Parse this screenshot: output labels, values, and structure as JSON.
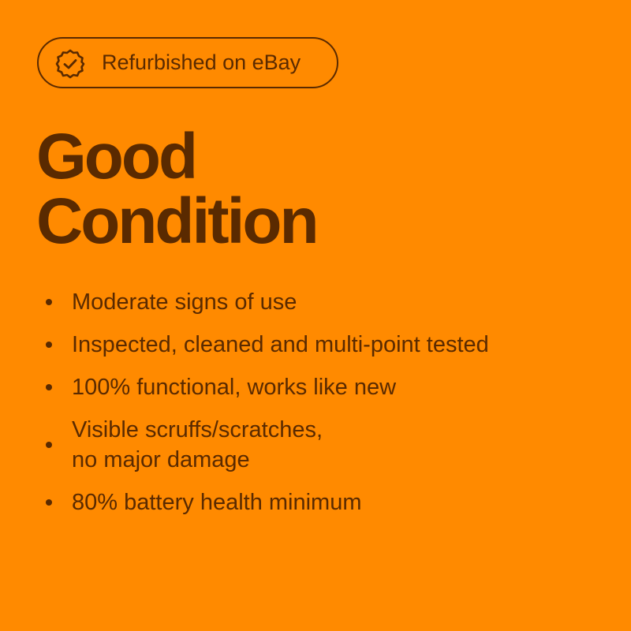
{
  "badge": {
    "label": "Refurbished on eBay",
    "icon": "verified-badge-check-icon"
  },
  "heading": {
    "line1": "Good",
    "line2": "Condition"
  },
  "bullets": [
    "Moderate signs of use",
    "Inspected, cleaned and multi-point tested",
    "100% functional, works like new",
    "Visible scruffs/scratches,\nno major damage",
    "80% battery health minimum"
  ],
  "colors": {
    "background": "#ff8a00",
    "text": "#5a2a00"
  }
}
